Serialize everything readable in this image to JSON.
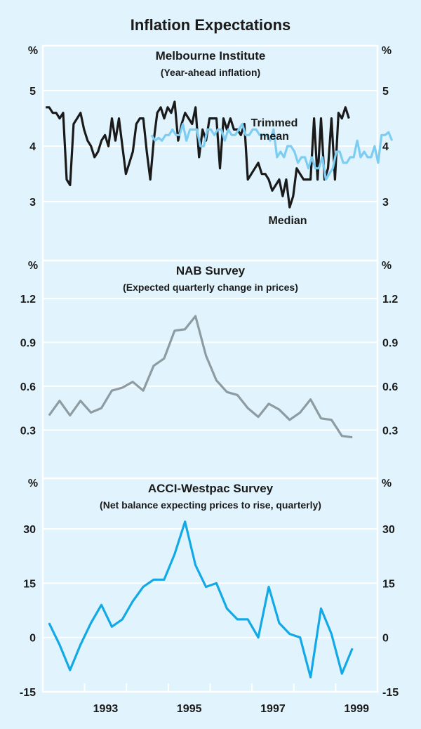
{
  "chart_data": {
    "title": "Inflation Expectations",
    "x_axis": {
      "range": [
        1992.0,
        2000.0
      ],
      "tick_labels": [
        "1993",
        "1995",
        "1997",
        "1999"
      ],
      "tick_years": [
        1993,
        1994,
        1995,
        1996,
        1997,
        1998,
        1999
      ]
    },
    "panels": [
      {
        "type": "line",
        "title": "Melbourne Institute",
        "subtitle": "(Year-ahead inflation)",
        "unit_label": "%",
        "ylim": [
          1.94,
          5.81
        ],
        "yticks": [
          3,
          4,
          5
        ],
        "ytick_labels": [
          "3",
          "4",
          "5"
        ],
        "grid": true,
        "series": [
          {
            "name": "Median",
            "annotation": "Median",
            "color": "#1a1a1a",
            "start": 1992.07,
            "step": 0.0833,
            "values": [
              4.7,
              4.7,
              4.6,
              4.6,
              4.5,
              4.6,
              3.4,
              3.3,
              4.4,
              4.5,
              4.6,
              4.3,
              4.1,
              4.0,
              3.8,
              3.9,
              4.1,
              4.2,
              4.0,
              4.5,
              4.1,
              4.5,
              4.0,
              3.5,
              3.7,
              3.9,
              4.4,
              4.5,
              4.5,
              3.9,
              3.4,
              4.1,
              4.6,
              4.7,
              4.5,
              4.7,
              4.6,
              4.8,
              4.1,
              4.4,
              4.6,
              4.5,
              4.4,
              4.7,
              3.8,
              4.3,
              4.1,
              4.5,
              4.5,
              4.5,
              3.6,
              4.5,
              4.3,
              4.5,
              4.3,
              4.3,
              4.2,
              4.4,
              3.4,
              3.5,
              3.6,
              3.7,
              3.5,
              3.5,
              3.4,
              3.2,
              3.3,
              3.4,
              3.1,
              3.4,
              2.9,
              3.1,
              3.6,
              3.5,
              3.4,
              3.4,
              3.4,
              4.5,
              3.4,
              4.5,
              3.4,
              3.6,
              4.5,
              3.4,
              4.6,
              4.5,
              4.7,
              4.5
            ]
          },
          {
            "name": "Trimmed mean",
            "annotation": "Trimmed mean",
            "annotation_lines": [
              "Trimmed",
              "mean"
            ],
            "color": "#7dcdf2",
            "start": 1994.6,
            "step": 0.0833,
            "values": [
              4.2,
              4.1,
              4.15,
              4.1,
              4.2,
              4.2,
              4.3,
              4.2,
              4.2,
              4.4,
              4.1,
              4.3,
              4.3,
              4.3,
              4.0,
              4.0,
              4.3,
              4.3,
              4.2,
              4.3,
              4.3,
              4.1,
              4.3,
              4.2,
              4.2,
              4.3,
              4.4,
              4.2,
              4.2,
              4.3,
              4.3,
              4.2,
              4.2,
              4.2,
              4.1,
              4.3,
              3.8,
              3.9,
              3.8,
              4.0,
              4.0,
              3.9,
              3.7,
              3.8,
              3.8,
              3.6,
              3.8,
              3.6,
              3.6,
              3.8,
              3.4,
              3.5,
              3.6,
              3.9,
              3.9,
              3.7,
              3.7,
              3.8,
              3.8,
              4.1,
              3.8,
              3.9,
              3.8,
              3.8,
              4.0,
              3.7,
              4.2,
              4.2,
              4.25,
              4.1
            ]
          }
        ]
      },
      {
        "type": "line",
        "title": "NAB Survey",
        "subtitle": "(Expected quarterly change in prices)",
        "unit_label": "%",
        "ylim": [
          -0.03,
          1.46
        ],
        "yticks": [
          0.3,
          0.6,
          0.9,
          1.2
        ],
        "ytick_labels": [
          "0.3",
          "0.6",
          "0.9",
          "1.2"
        ],
        "grid": true,
        "series": [
          {
            "name": "NAB expected quarterly price change",
            "color": "#8e9ba1",
            "start": 1992.15,
            "step": 0.25,
            "values": [
              0.4,
              0.5,
              0.4,
              0.5,
              0.42,
              0.45,
              0.57,
              0.59,
              0.63,
              0.57,
              0.74,
              0.79,
              0.98,
              0.99,
              1.08,
              0.81,
              0.64,
              0.56,
              0.54,
              0.45,
              0.39,
              0.48,
              0.44,
              0.37,
              0.42,
              0.51,
              0.38,
              0.37,
              0.26,
              0.25
            ]
          }
        ]
      },
      {
        "type": "line",
        "title": "ACCI-Westpac Survey",
        "subtitle": "(Net balance expecting prices to rise, quarterly)",
        "unit_label": "%",
        "ylim": [
          -15,
          44
        ],
        "yticks": [
          -15,
          0,
          15,
          30
        ],
        "ytick_labels": [
          "-15",
          "0",
          "15",
          "30"
        ],
        "grid": true,
        "series": [
          {
            "name": "ACCI-Westpac net balance",
            "color": "#12a9e6",
            "start": 1992.15,
            "step": 0.25,
            "values": [
              4,
              -2,
              -9,
              -2,
              4,
              9,
              3,
              5,
              10,
              14,
              16,
              16,
              23,
              32,
              20,
              14,
              15,
              8,
              5,
              5,
              0,
              14,
              4,
              1,
              0,
              -11,
              8,
              1,
              -10,
              -3
            ]
          }
        ]
      }
    ]
  }
}
